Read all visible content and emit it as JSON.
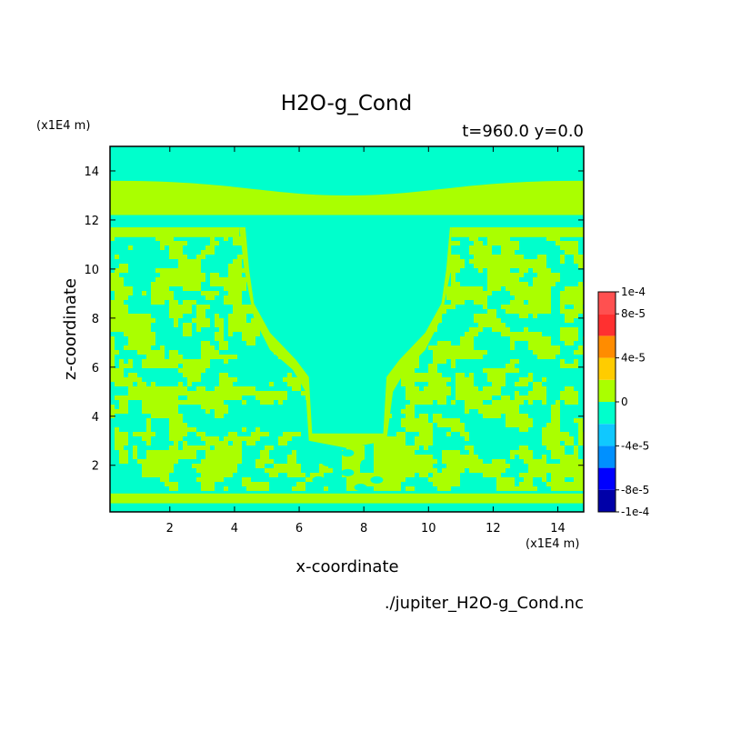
{
  "chart_data": {
    "type": "heatmap",
    "title": "H2O-g_Cond",
    "subtitle": "t=960.0 y=0.0",
    "xlabel": "x-coordinate",
    "ylabel": "z-coordinate",
    "x_unit": "(x1E4 m)",
    "y_unit": "(x1E4 m)",
    "xlim": [
      0.15,
      14.8
    ],
    "ylim": [
      0.1,
      15
    ],
    "xticks": [
      "2",
      "4",
      "6",
      "8",
      "10",
      "12",
      "14"
    ],
    "yticks": [
      "2",
      "4",
      "6",
      "8",
      "10",
      "12",
      "14"
    ],
    "source": "./jupiter_H2O-g_Cond.nc",
    "colorbar": {
      "ticks": [
        "1e-4",
        "8e-5",
        "4e-5",
        "0",
        "-4e-5",
        "-8e-5",
        "-1e-4"
      ],
      "colors": [
        "#0000a8",
        "#0000ff",
        "#0090ff",
        "#10c8ff",
        "#00ffcc",
        "#aaff00",
        "#ffcc00",
        "#ff8c00",
        "#ff3030",
        "#ff5050"
      ]
    },
    "field": {
      "background_value": 0,
      "background_color": "#00ffcc",
      "positive_color": "#aaff00",
      "regions": [
        {
          "name": "upper band",
          "z_range": [
            12.2,
            13.6
          ],
          "value": "small positive"
        },
        {
          "name": "thin band",
          "z_range": [
            11.3,
            11.7
          ],
          "value": "small positive"
        },
        {
          "name": "mottled convective layer",
          "z_range": [
            1.0,
            11.3
          ],
          "value": "mixed 0 / small positive"
        },
        {
          "name": "central plume column",
          "x_range": [
            4.3,
            10.7
          ],
          "z_range": [
            3.3,
            12.2
          ],
          "value": 0
        },
        {
          "name": "bottom band",
          "z_range": [
            0.45,
            0.85
          ],
          "value": "small positive"
        }
      ]
    }
  }
}
